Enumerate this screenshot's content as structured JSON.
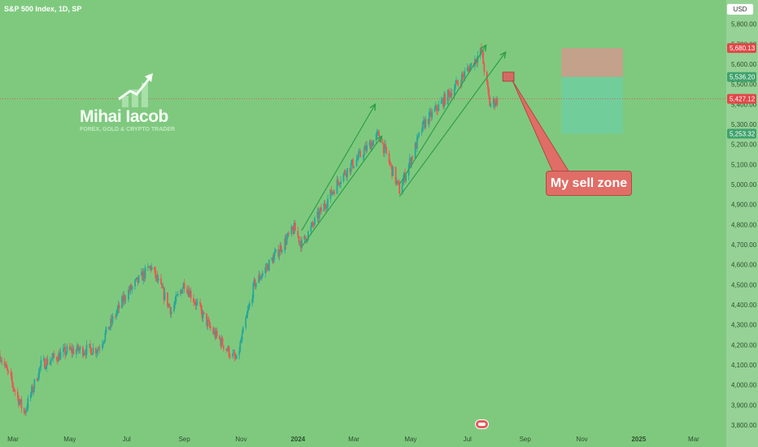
{
  "header": {
    "symbol_title": "S&P 500 Index, 1D, SP",
    "currency_button": "USD"
  },
  "watermark": {
    "name": "Mihai Iacob",
    "tagline": "FOREX, GOLD & CRYPTO TRADER"
  },
  "annotation": {
    "sell_zone_label": "My sell zone"
  },
  "colors": {
    "background": "#7fc97f",
    "up_candle": "#26a69a",
    "down_candle": "#ef5350",
    "channel": "#2e9e4a",
    "stop_zone": "#d09a8c",
    "target_zone": "#6fcfa0",
    "current_price": "#e04848",
    "entry_label": "#3fa36c"
  },
  "chart_data": {
    "type": "candlestick",
    "title": "S&P 500 Index, 1D, SP",
    "xlabel": "",
    "ylabel": "",
    "ylim": [
      3780,
      5920
    ],
    "x_range": [
      "2023-02-15",
      "2025-04-05"
    ],
    "x_ticks": [
      {
        "label": "Mar",
        "date": "2023-03-01"
      },
      {
        "label": "May",
        "date": "2023-05-01"
      },
      {
        "label": "Jul",
        "date": "2023-07-01"
      },
      {
        "label": "Sep",
        "date": "2023-09-01"
      },
      {
        "label": "Nov",
        "date": "2023-11-01"
      },
      {
        "label": "2024",
        "date": "2024-01-01"
      },
      {
        "label": "Mar",
        "date": "2024-03-01"
      },
      {
        "label": "May",
        "date": "2024-05-01"
      },
      {
        "label": "Jul",
        "date": "2024-07-01"
      },
      {
        "label": "Sep",
        "date": "2024-09-01"
      },
      {
        "label": "Nov",
        "date": "2024-11-01"
      },
      {
        "label": "2025",
        "date": "2025-01-01"
      },
      {
        "label": "Mar",
        "date": "2025-03-01"
      }
    ],
    "y_ticks": [
      3800,
      3900,
      4000,
      4100,
      4200,
      4300,
      4400,
      4500,
      4600,
      4700,
      4800,
      4900,
      5000,
      5100,
      5200,
      5300,
      5400,
      5500,
      5600,
      5700,
      5800
    ],
    "y_tick_labels": [
      "3,800.00",
      "3,900.00",
      "4,000.00",
      "4,100.00",
      "4,200.00",
      "4,300.00",
      "4,400.00",
      "4,500.00",
      "4,600.00",
      "4,700.00",
      "4,800.00",
      "4,900.00",
      "5,000.00",
      "5,100.00",
      "5,200.00",
      "5,300.00",
      "5,400.00",
      "5,500.00",
      "5,600.00",
      "5,700.00",
      "5,800.00"
    ],
    "price_path": [
      {
        "date": "2023-02-15",
        "price": 4150
      },
      {
        "date": "2023-03-13",
        "price": 3860
      },
      {
        "date": "2023-03-31",
        "price": 4100
      },
      {
        "date": "2023-04-28",
        "price": 4170
      },
      {
        "date": "2023-05-31",
        "price": 4180
      },
      {
        "date": "2023-06-30",
        "price": 4450
      },
      {
        "date": "2023-07-27",
        "price": 4590
      },
      {
        "date": "2023-08-18",
        "price": 4370
      },
      {
        "date": "2023-09-01",
        "price": 4510
      },
      {
        "date": "2023-09-29",
        "price": 4280
      },
      {
        "date": "2023-10-27",
        "price": 4120
      },
      {
        "date": "2023-11-15",
        "price": 4500
      },
      {
        "date": "2023-12-28",
        "price": 4780
      },
      {
        "date": "2024-01-05",
        "price": 4700
      },
      {
        "date": "2024-02-15",
        "price": 5030
      },
      {
        "date": "2024-03-28",
        "price": 5250
      },
      {
        "date": "2024-04-19",
        "price": 4970
      },
      {
        "date": "2024-05-15",
        "price": 5300
      },
      {
        "date": "2024-06-18",
        "price": 5490
      },
      {
        "date": "2024-07-16",
        "price": 5665
      },
      {
        "date": "2024-07-25",
        "price": 5400
      },
      {
        "date": "2024-08-05",
        "price": 5427
      }
    ],
    "channels": [
      {
        "from": {
          "date": "2024-01-05",
          "price": 4770
        },
        "to": {
          "date": "2024-03-24",
          "price": 5400
        }
      },
      {
        "from": {
          "date": "2024-01-05",
          "price": 4690
        },
        "to": {
          "date": "2024-03-31",
          "price": 5240
        }
      },
      {
        "from": {
          "date": "2024-04-19",
          "price": 5000
        },
        "to": {
          "date": "2024-07-21",
          "price": 5695
        }
      },
      {
        "from": {
          "date": "2024-04-19",
          "price": 4940
        },
        "to": {
          "date": "2024-08-11",
          "price": 5660
        }
      }
    ],
    "position": {
      "entry_zone": {
        "from": "2024-08-08",
        "to": "2024-08-20",
        "top": 5560,
        "bottom": 5515
      },
      "start": "2024-10-10",
      "end": "2024-12-15",
      "stop": 5680.13,
      "entry": 5536.2,
      "target": 5253.32
    },
    "price_labels": [
      {
        "value": 5680.13,
        "label": "5,680.13",
        "color": "#e04848"
      },
      {
        "value": 5536.2,
        "label": "5,536.20",
        "color": "#3fa36c"
      },
      {
        "value": 5427.12,
        "label": "5,427.12",
        "color": "#e04848"
      },
      {
        "value": 5253.32,
        "label": "5,253.32",
        "color": "#3fa36c"
      }
    ],
    "current_price": 5427.12,
    "grid": false,
    "legend": "none"
  }
}
